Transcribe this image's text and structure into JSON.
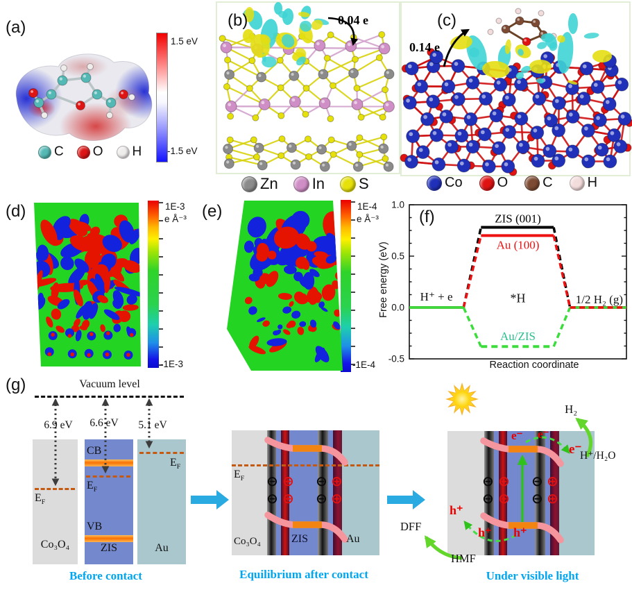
{
  "figure": {
    "panel_labels": {
      "a": "(a)",
      "b": "(b)",
      "c": "(c)",
      "d": "(d)",
      "e": "(e)",
      "f": "(f)",
      "g": "(g)"
    }
  },
  "panel_a": {
    "colorbar": {
      "top": "1.5 eV",
      "bottom": "-1.5 eV"
    },
    "legend": [
      {
        "symbol": "C",
        "color": "#54b9b5"
      },
      {
        "symbol": "O",
        "color": "#de1515"
      },
      {
        "symbol": "H",
        "color": "#efecec"
      }
    ]
  },
  "panel_b": {
    "annotation": "0.04 e",
    "legend": [
      {
        "symbol": "Zn",
        "color": "#8b8b8b"
      },
      {
        "symbol": "In",
        "color": "#cf8ec5"
      },
      {
        "symbol": "S",
        "color": "#e6e10a"
      }
    ]
  },
  "panel_c": {
    "annotation": "0.14 e",
    "legend": [
      {
        "symbol": "Co",
        "color": "#2030b8"
      },
      {
        "symbol": "O",
        "color": "#e01313"
      },
      {
        "symbol": "C",
        "color": "#7d4b33"
      },
      {
        "symbol": "H",
        "color": "#f3dcdc"
      }
    ]
  },
  "panel_d": {
    "colorbar": {
      "top": "1E-3",
      "unit": "e Å⁻³",
      "bottom": "-1E-3"
    }
  },
  "panel_e": {
    "colorbar": {
      "top": "1E-4",
      "unit": "e Å⁻³",
      "bottom": "-1E-4"
    }
  },
  "chart_data": {
    "type": "line",
    "panel": "f",
    "title": "",
    "xlabel": "Reaction coordinate",
    "ylabel": "Free energy (eV)",
    "ylim": [
      -0.5,
      1.0
    ],
    "yticks": [
      1.0,
      0.5,
      0.0,
      -0.5
    ],
    "grid": false,
    "stages": [
      {
        "label": "H⁺ + e",
        "x_range": [
          0.0,
          0.25
        ]
      },
      {
        "label": "*H",
        "x_range": [
          0.33,
          0.665
        ]
      },
      {
        "label": "1/2 H₂ (g)",
        "x_range": [
          0.74,
          1.0
        ]
      }
    ],
    "series": [
      {
        "name": "ZIS (001)",
        "color": "#000000",
        "label_color": "#000000",
        "values": [
          0.0,
          0.78,
          0.0
        ]
      },
      {
        "name": "Au (100)",
        "color": "#ee1111",
        "label_color": "#ee1111",
        "values": [
          0.0,
          0.7,
          0.0
        ]
      },
      {
        "name": "Au/ZIS",
        "color": "#3ddc3d",
        "label_color": "#2abf8e",
        "values": [
          0.0,
          -0.38,
          0.0
        ]
      }
    ]
  },
  "panel_g": {
    "vacuum_label": "Vacuum level",
    "work_functions": [
      {
        "value": "6.9 eV"
      },
      {
        "value": "6.6 eV"
      },
      {
        "value": "5.1 eV"
      }
    ],
    "ef_main": "E",
    "ef_sub": "F",
    "cb_label": "CB",
    "vb_label": "VB",
    "materials": {
      "co3o4": "Co₃O₄",
      "zis": "ZIS",
      "au": "Au"
    },
    "captions": {
      "before": "Before contact",
      "equilibrium": "Equilibrium after contact",
      "light": "Under visible light"
    },
    "charge": {
      "minus": "⊖",
      "plus": "⊕"
    },
    "light": {
      "h2": "H₂",
      "electron": "e⁻",
      "hole": "h⁺",
      "water": "H⁺/H₂O",
      "dff": "DFF",
      "hmf": "HMF"
    },
    "accent_color": "#00a6ef"
  }
}
